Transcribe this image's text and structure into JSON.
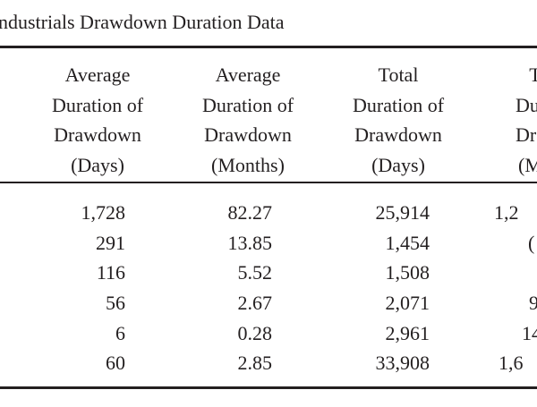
{
  "title": "ndustrials Drawdown Duration Data",
  "columns": [
    [
      "Average",
      "Duration of",
      "Drawdown",
      "(Days)"
    ],
    [
      "Average",
      "Duration of",
      "Drawdown",
      "(Months)"
    ],
    [
      "Total",
      "Duration of",
      "Drawdown",
      "(Days)"
    ],
    [
      "T",
      "Dura",
      "Drav",
      "(Mo"
    ]
  ],
  "rows": [
    [
      "1,728",
      "82.27",
      "25,914",
      "1,2"
    ],
    [
      "291",
      "13.85",
      "1,454",
      "("
    ],
    [
      "116",
      "5.52",
      "1,508",
      ""
    ],
    [
      "56",
      "2.67",
      "2,071",
      "9"
    ],
    [
      "6",
      "0.28",
      "2,961",
      "14"
    ],
    [
      "60",
      "2.85",
      "33,908",
      "1,6"
    ]
  ]
}
